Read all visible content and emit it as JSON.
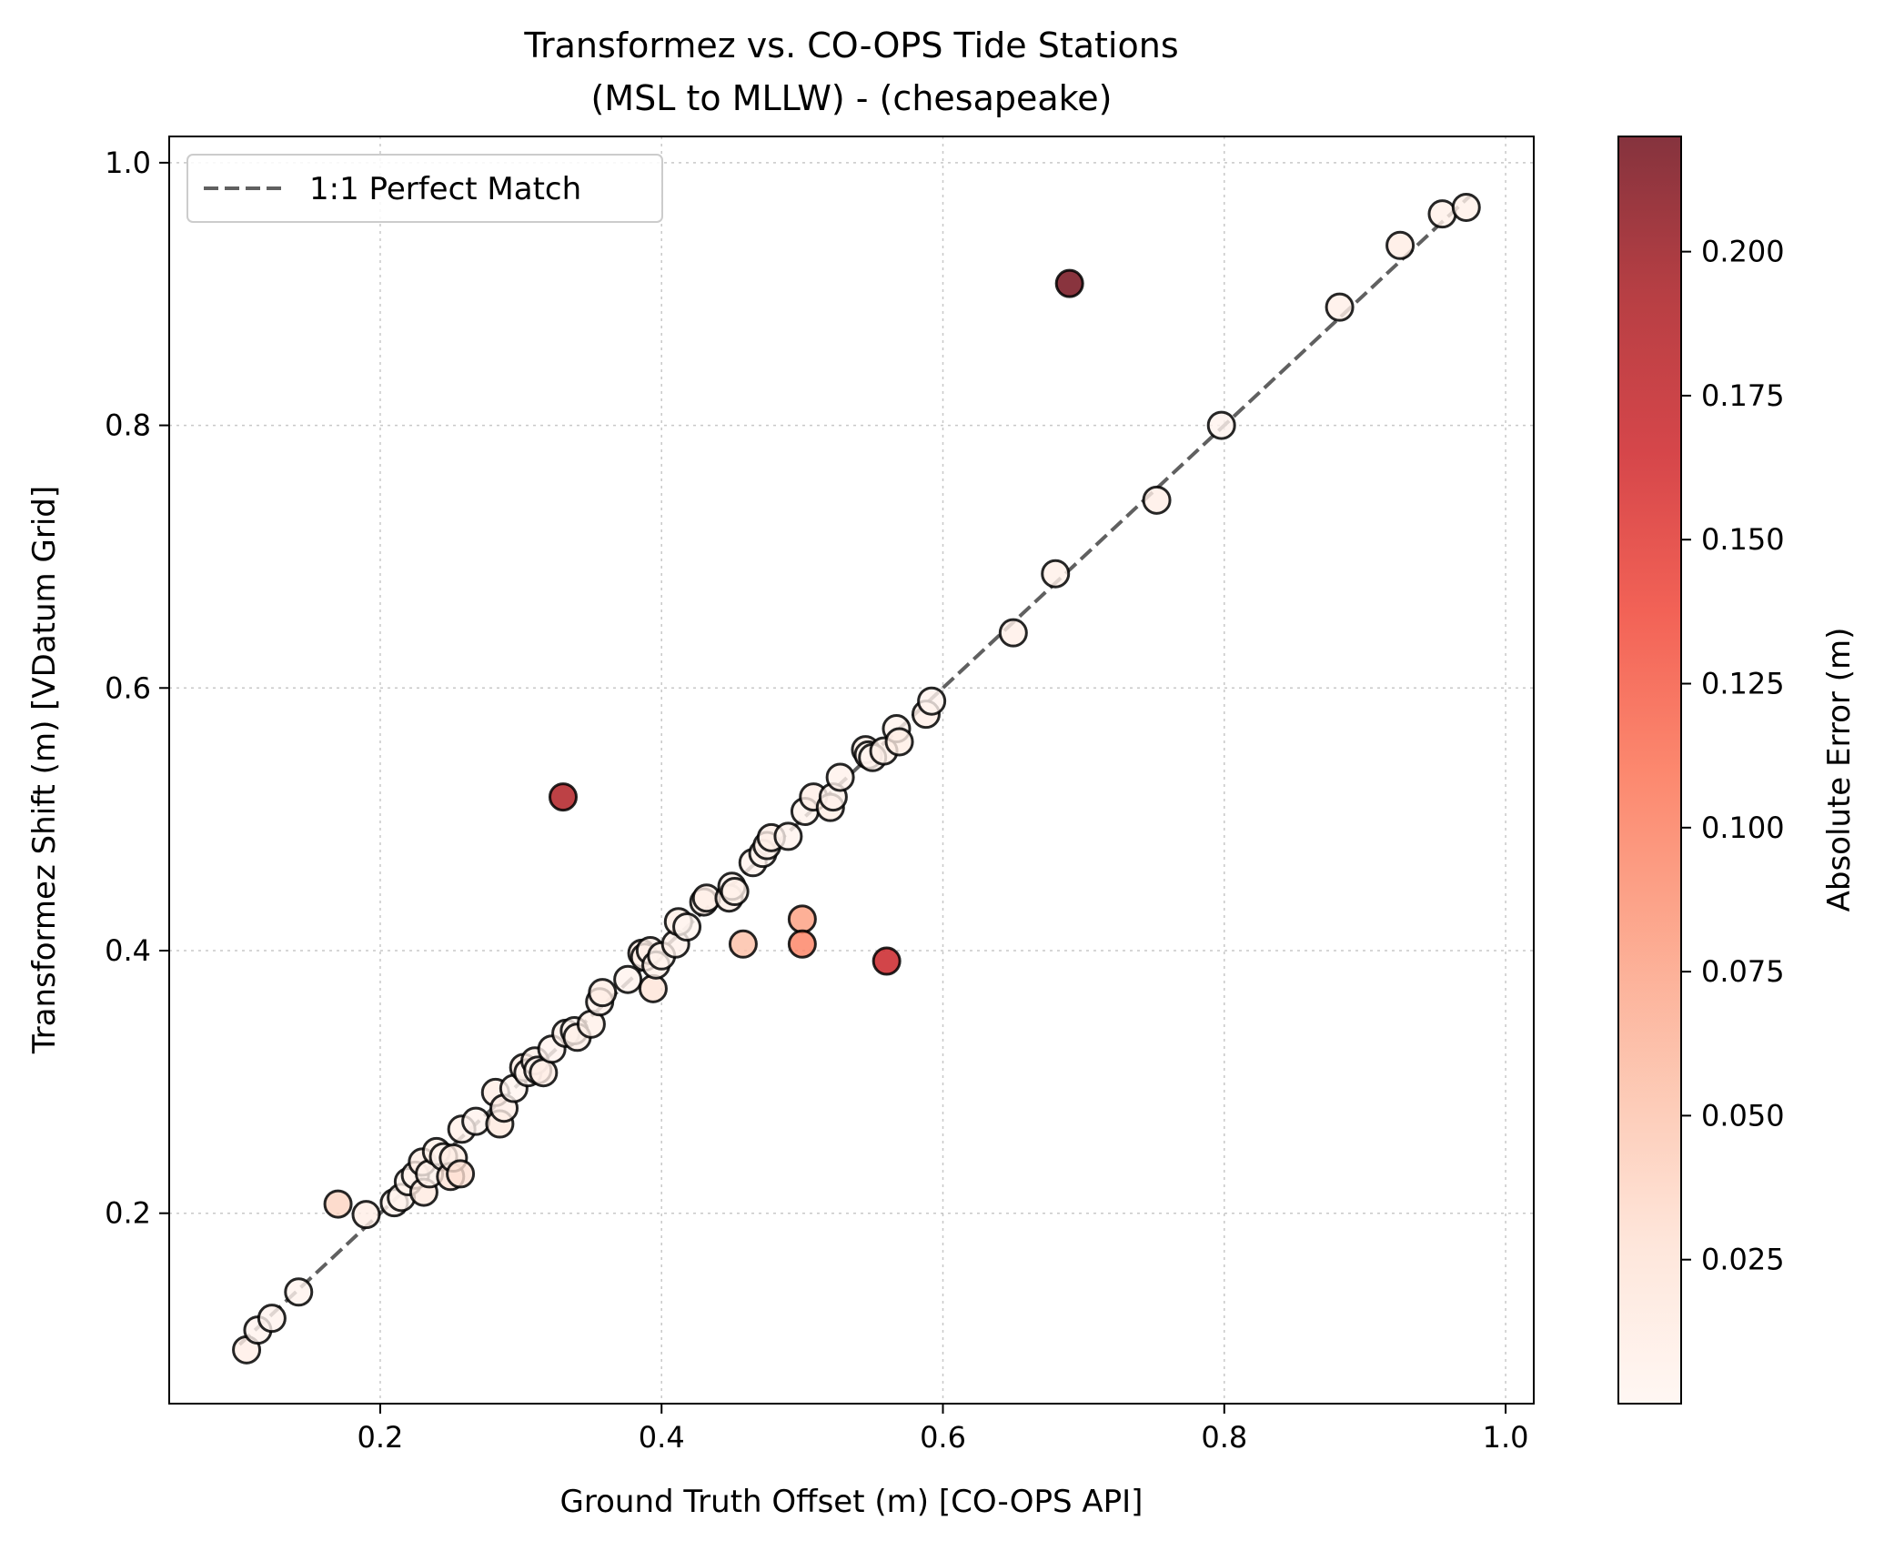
{
  "chart_data": {
    "type": "scatter",
    "title": "Transformez vs. CO-OPS Tide Stations",
    "subtitle": "(MSL to MLLW) - (chesapeake)",
    "xlabel": "Ground Truth Offset (m) [CO-OPS API]",
    "ylabel": "Transformez Shift (m) [VDatum Grid]",
    "xlim": [
      0.05,
      1.02
    ],
    "ylim": [
      0.055,
      1.02
    ],
    "xticks": [
      0.2,
      0.4,
      0.6,
      0.8,
      1.0
    ],
    "yticks": [
      0.2,
      0.4,
      0.6,
      0.8,
      1.0
    ],
    "xtick_labels": [
      "0.2",
      "0.4",
      "0.6",
      "0.8",
      "1.0"
    ],
    "ytick_labels": [
      "0.2",
      "0.4",
      "0.6",
      "0.8",
      "1.0"
    ],
    "grid": true,
    "legend": {
      "placement": "top-left",
      "entries": [
        "1:1 Perfect Match"
      ]
    },
    "reference_line": {
      "name": "1:1 Perfect Match",
      "x": [
        0.1,
        0.975
      ],
      "y": [
        0.1,
        0.975
      ],
      "color": "#606060"
    },
    "colorbar": {
      "label": "Absolute Error (m)",
      "range": [
        0.0,
        0.22
      ],
      "ticks": [
        0.025,
        0.05,
        0.075,
        0.1,
        0.125,
        0.15,
        0.175,
        0.2
      ],
      "tick_labels": [
        "0.025",
        "0.050",
        "0.075",
        "0.100",
        "0.125",
        "0.150",
        "0.175",
        "0.200"
      ],
      "colormap": [
        "#fff5f0",
        "#fee0d2",
        "#fcbba1",
        "#fc9272",
        "#fb6a4a",
        "#ef3b2c",
        "#cb181d",
        "#a50f15",
        "#67000d"
      ]
    },
    "points": [
      {
        "x": 0.105,
        "y": 0.096
      },
      {
        "x": 0.113,
        "y": 0.111
      },
      {
        "x": 0.123,
        "y": 0.12
      },
      {
        "x": 0.142,
        "y": 0.14
      },
      {
        "x": 0.17,
        "y": 0.207
      },
      {
        "x": 0.19,
        "y": 0.199
      },
      {
        "x": 0.21,
        "y": 0.208
      },
      {
        "x": 0.215,
        "y": 0.212
      },
      {
        "x": 0.22,
        "y": 0.224
      },
      {
        "x": 0.225,
        "y": 0.229
      },
      {
        "x": 0.23,
        "y": 0.239
      },
      {
        "x": 0.231,
        "y": 0.216
      },
      {
        "x": 0.235,
        "y": 0.23
      },
      {
        "x": 0.24,
        "y": 0.247
      },
      {
        "x": 0.245,
        "y": 0.243
      },
      {
        "x": 0.25,
        "y": 0.228
      },
      {
        "x": 0.252,
        "y": 0.242
      },
      {
        "x": 0.257,
        "y": 0.23
      },
      {
        "x": 0.258,
        "y": 0.264
      },
      {
        "x": 0.268,
        "y": 0.27
      },
      {
        "x": 0.282,
        "y": 0.292
      },
      {
        "x": 0.285,
        "y": 0.268
      },
      {
        "x": 0.288,
        "y": 0.28
      },
      {
        "x": 0.295,
        "y": 0.295
      },
      {
        "x": 0.302,
        "y": 0.311
      },
      {
        "x": 0.305,
        "y": 0.307
      },
      {
        "x": 0.31,
        "y": 0.316
      },
      {
        "x": 0.312,
        "y": 0.309
      },
      {
        "x": 0.316,
        "y": 0.307
      },
      {
        "x": 0.322,
        "y": 0.325
      },
      {
        "x": 0.33,
        "y": 0.517
      },
      {
        "x": 0.332,
        "y": 0.337
      },
      {
        "x": 0.338,
        "y": 0.339
      },
      {
        "x": 0.34,
        "y": 0.334
      },
      {
        "x": 0.35,
        "y": 0.344
      },
      {
        "x": 0.356,
        "y": 0.361
      },
      {
        "x": 0.358,
        "y": 0.368
      },
      {
        "x": 0.376,
        "y": 0.378
      },
      {
        "x": 0.386,
        "y": 0.398
      },
      {
        "x": 0.388,
        "y": 0.395
      },
      {
        "x": 0.392,
        "y": 0.4
      },
      {
        "x": 0.394,
        "y": 0.371
      },
      {
        "x": 0.396,
        "y": 0.389
      },
      {
        "x": 0.4,
        "y": 0.396
      },
      {
        "x": 0.41,
        "y": 0.405
      },
      {
        "x": 0.412,
        "y": 0.422
      },
      {
        "x": 0.418,
        "y": 0.418
      },
      {
        "x": 0.43,
        "y": 0.437
      },
      {
        "x": 0.432,
        "y": 0.44
      },
      {
        "x": 0.448,
        "y": 0.44
      },
      {
        "x": 0.45,
        "y": 0.449
      },
      {
        "x": 0.452,
        "y": 0.445
      },
      {
        "x": 0.458,
        "y": 0.405
      },
      {
        "x": 0.465,
        "y": 0.467
      },
      {
        "x": 0.472,
        "y": 0.474
      },
      {
        "x": 0.475,
        "y": 0.48
      },
      {
        "x": 0.478,
        "y": 0.486
      },
      {
        "x": 0.49,
        "y": 0.487
      },
      {
        "x": 0.5,
        "y": 0.424
      },
      {
        "x": 0.5,
        "y": 0.405
      },
      {
        "x": 0.502,
        "y": 0.506
      },
      {
        "x": 0.508,
        "y": 0.517
      },
      {
        "x": 0.52,
        "y": 0.509
      },
      {
        "x": 0.522,
        "y": 0.517
      },
      {
        "x": 0.527,
        "y": 0.532
      },
      {
        "x": 0.545,
        "y": 0.553
      },
      {
        "x": 0.547,
        "y": 0.549
      },
      {
        "x": 0.55,
        "y": 0.547
      },
      {
        "x": 0.558,
        "y": 0.552
      },
      {
        "x": 0.56,
        "y": 0.392
      },
      {
        "x": 0.567,
        "y": 0.569
      },
      {
        "x": 0.569,
        "y": 0.559
      },
      {
        "x": 0.588,
        "y": 0.58
      },
      {
        "x": 0.592,
        "y": 0.59
      },
      {
        "x": 0.65,
        "y": 0.642
      },
      {
        "x": 0.68,
        "y": 0.687
      },
      {
        "x": 0.69,
        "y": 0.908
      },
      {
        "x": 0.752,
        "y": 0.743
      },
      {
        "x": 0.798,
        "y": 0.8
      },
      {
        "x": 0.882,
        "y": 0.89
      },
      {
        "x": 0.925,
        "y": 0.937
      },
      {
        "x": 0.955,
        "y": 0.961
      },
      {
        "x": 0.972,
        "y": 0.966
      }
    ]
  }
}
